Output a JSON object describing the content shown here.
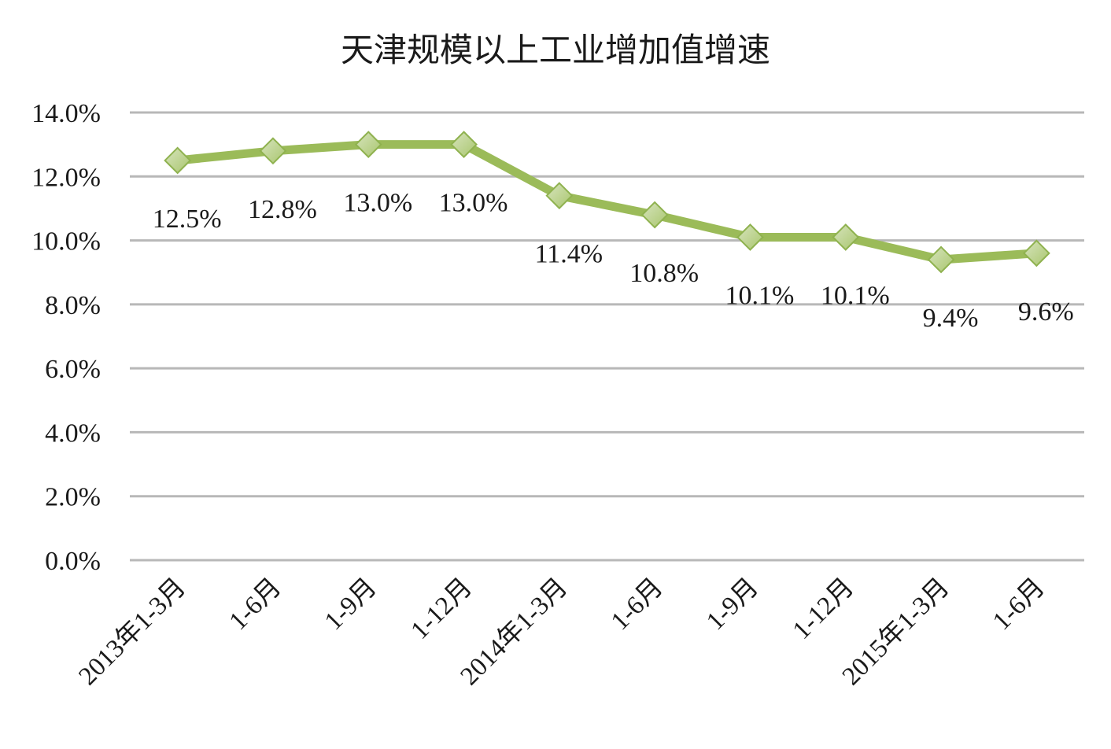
{
  "chart_data": {
    "type": "line",
    "title": "天津规模以上工业增加值增速",
    "xlabel": "",
    "ylabel": "",
    "categories": [
      "2013年1-3月",
      "1-6月",
      "1-9月",
      "1-12月",
      "2014年1-3月",
      "1-6月",
      "1-9月",
      "1-12月",
      "2015年1-3月",
      "1-6月"
    ],
    "series": [
      {
        "values": [
          12.5,
          12.8,
          13.0,
          13.0,
          11.4,
          10.8,
          10.1,
          10.1,
          9.4,
          9.6
        ],
        "data_labels": [
          "12.5%",
          "12.8%",
          "13.0%",
          "13.0%",
          "11.4%",
          "10.8%",
          "10.1%",
          "10.1%",
          "9.4%",
          "9.6%"
        ],
        "color": "#9bbb59",
        "marker": "diamond"
      }
    ],
    "ylim": [
      0,
      14
    ],
    "y_ticks": [
      0,
      2,
      4,
      6,
      8,
      10,
      12,
      14
    ],
    "y_tick_labels": [
      "0.0%",
      "2.0%",
      "4.0%",
      "6.0%",
      "8.0%",
      "10.0%",
      "12.0%",
      "14.0%"
    ],
    "grid": true,
    "legend": "none",
    "colors": {
      "series": "#9bbb59",
      "marker_fill_light": "#d7e4bd",
      "marker_fill_dark": "#a9c66e",
      "grid": "#b8b8b8",
      "text": "#1a1a1a"
    }
  }
}
